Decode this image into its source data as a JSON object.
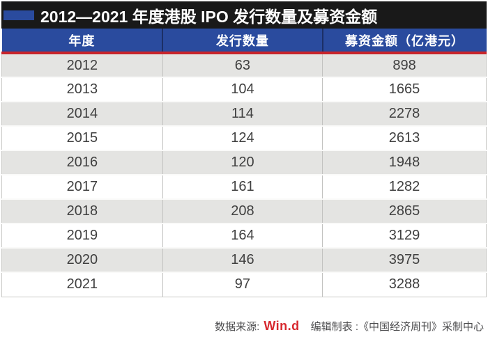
{
  "title": {
    "text": "2012—2021 年度港股 IPO 发行数量及募资金额"
  },
  "table": {
    "columns": [
      "年度",
      "发行数量",
      "募资金额（亿港元）"
    ],
    "rows": [
      [
        "2012",
        "63",
        "898"
      ],
      [
        "2013",
        "104",
        "1665"
      ],
      [
        "2014",
        "114",
        "2278"
      ],
      [
        "2015",
        "124",
        "2613"
      ],
      [
        "2016",
        "120",
        "1948"
      ],
      [
        "2017",
        "161",
        "1282"
      ],
      [
        "2018",
        "208",
        "2865"
      ],
      [
        "2019",
        "164",
        "3129"
      ],
      [
        "2020",
        "146",
        "3975"
      ],
      [
        "2021",
        "97",
        "3288"
      ]
    ]
  },
  "footer": {
    "source_label": "数据来源:",
    "source_name": "Win.d",
    "credit": "编辑制表 :《中国经济周刊》采制中心"
  },
  "colors": {
    "title_bar_black": "#191919",
    "accent_blue": "#2a4b9e",
    "rule_red": "#c8242b",
    "row_alt_gray": "#e4e4e2",
    "body_text_gray": "#404040",
    "logo_red": "#d7282e"
  },
  "chart_data": {
    "type": "table",
    "title": "2012—2021 年度港股 IPO 发行数量及募资金额",
    "columns": [
      "年度",
      "发行数量",
      "募资金额（亿港元）"
    ],
    "rows": [
      [
        2012,
        63,
        898
      ],
      [
        2013,
        104,
        1665
      ],
      [
        2014,
        114,
        2278
      ],
      [
        2015,
        124,
        2613
      ],
      [
        2016,
        120,
        1948
      ],
      [
        2017,
        161,
        1282
      ],
      [
        2018,
        208,
        2865
      ],
      [
        2019,
        164,
        3129
      ],
      [
        2020,
        146,
        3975
      ],
      [
        2021,
        97,
        3288
      ]
    ],
    "source": "Win.d",
    "credit": "编辑制表 :《中国经济周刊》采制中心"
  }
}
